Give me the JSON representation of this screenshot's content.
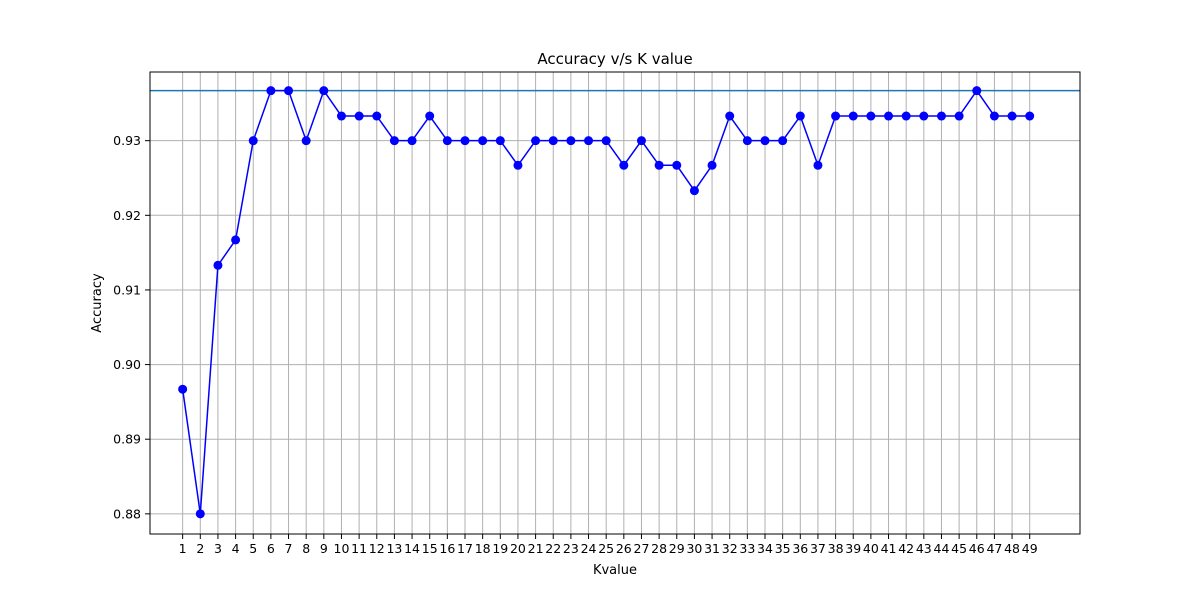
{
  "chart_data": {
    "type": "line",
    "title": "Accuracy v/s K value",
    "xlabel": "Kvalue",
    "ylabel": "Accuracy",
    "xlim": [
      -0.85,
      51.85
    ],
    "ylim": [
      0.8773,
      0.9392
    ],
    "x_ticks": [
      1,
      2,
      3,
      4,
      5,
      6,
      7,
      8,
      9,
      10,
      11,
      12,
      13,
      14,
      15,
      16,
      17,
      18,
      19,
      20,
      21,
      22,
      23,
      24,
      25,
      26,
      27,
      28,
      29,
      30,
      31,
      32,
      33,
      34,
      35,
      36,
      37,
      38,
      39,
      40,
      41,
      42,
      43,
      44,
      45,
      46,
      47,
      48,
      49
    ],
    "x_tick_labels": [
      "1",
      "2",
      "3",
      "4",
      "5",
      "6",
      "7",
      "8",
      "9",
      "10",
      "11",
      "12",
      "13",
      "14",
      "15",
      "16",
      "17",
      "18",
      "19",
      "20",
      "21",
      "22",
      "23",
      "24",
      "25",
      "26",
      "27",
      "28",
      "29",
      "30",
      "31",
      "32",
      "33",
      "34",
      "35",
      "36",
      "37",
      "38",
      "39",
      "40",
      "41",
      "42",
      "43",
      "44",
      "45",
      "46",
      "47",
      "48",
      "49"
    ],
    "y_ticks": [
      0.88,
      0.89,
      0.9,
      0.91,
      0.92,
      0.93
    ],
    "y_tick_labels": [
      "0.88",
      "0.89",
      "0.90",
      "0.91",
      "0.92",
      "0.93"
    ],
    "grid": true,
    "series": [
      {
        "color": "#0000ff",
        "marker": "circle",
        "x": [
          1,
          2,
          3,
          4,
          5,
          6,
          7,
          8,
          9,
          10,
          11,
          12,
          13,
          14,
          15,
          16,
          17,
          18,
          19,
          20,
          21,
          22,
          23,
          24,
          25,
          26,
          27,
          28,
          29,
          30,
          31,
          32,
          33,
          34,
          35,
          36,
          37,
          38,
          39,
          40,
          41,
          42,
          43,
          44,
          45,
          46,
          47,
          48,
          49
        ],
        "values": [
          0.8967,
          0.88,
          0.9133,
          0.9167,
          0.93,
          0.9367,
          0.9367,
          0.93,
          0.9367,
          0.9333,
          0.9333,
          0.9333,
          0.93,
          0.93,
          0.9333,
          0.93,
          0.93,
          0.93,
          0.93,
          0.9267,
          0.93,
          0.93,
          0.93,
          0.93,
          0.93,
          0.9267,
          0.93,
          0.9267,
          0.9267,
          0.9233,
          0.9267,
          0.9333,
          0.93,
          0.93,
          0.93,
          0.9333,
          0.9267,
          0.9333,
          0.9333,
          0.9333,
          0.9333,
          0.9333,
          0.9333,
          0.9333,
          0.9333,
          0.9367,
          0.9333,
          0.9333,
          0.9333
        ]
      }
    ],
    "reference_lines": [
      {
        "orientation": "horizontal",
        "value": 0.9367,
        "color": "#1f77b4"
      }
    ]
  }
}
